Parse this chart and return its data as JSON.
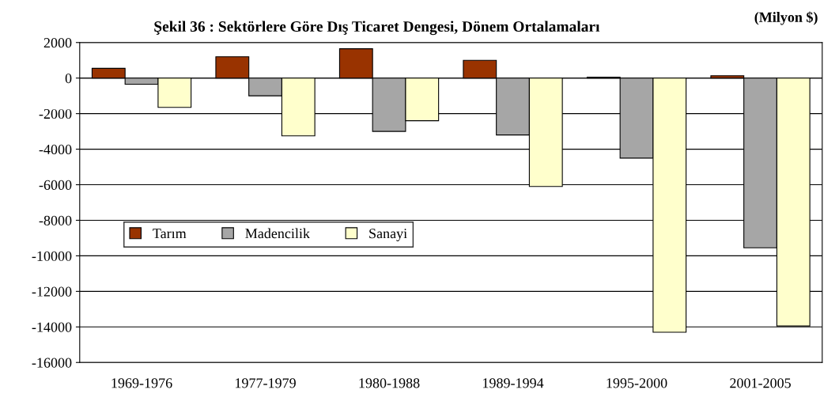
{
  "chart_data": {
    "type": "bar",
    "title": "Şekil 36 : Sektörlere Göre Dış Ticaret Dengesi, Dönem Ortalamaları",
    "annotations": [
      "(Milyon $)"
    ],
    "categories": [
      "1969-1976",
      "1977-1979",
      "1980-1988",
      "1989-1994",
      "1995-2000",
      "2001-2005"
    ],
    "series": [
      {
        "name": "Tarım",
        "color": "#993300",
        "values": [
          550,
          1200,
          1650,
          1000,
          50,
          130
        ]
      },
      {
        "name": "Madencilik",
        "color": "#a6a6a6",
        "values": [
          -350,
          -1000,
          -3000,
          -3200,
          -4500,
          -9550
        ]
      },
      {
        "name": "Sanayi",
        "color": "#ffffcc",
        "values": [
          -1650,
          -3250,
          -2400,
          -6100,
          -14300,
          -13950
        ]
      }
    ],
    "ylim": [
      -16000,
      2000
    ],
    "yticks": [
      -16000,
      -14000,
      -12000,
      -10000,
      -8000,
      -6000,
      -4000,
      -2000,
      0,
      2000
    ],
    "grid": "y",
    "legend": "center left"
  }
}
